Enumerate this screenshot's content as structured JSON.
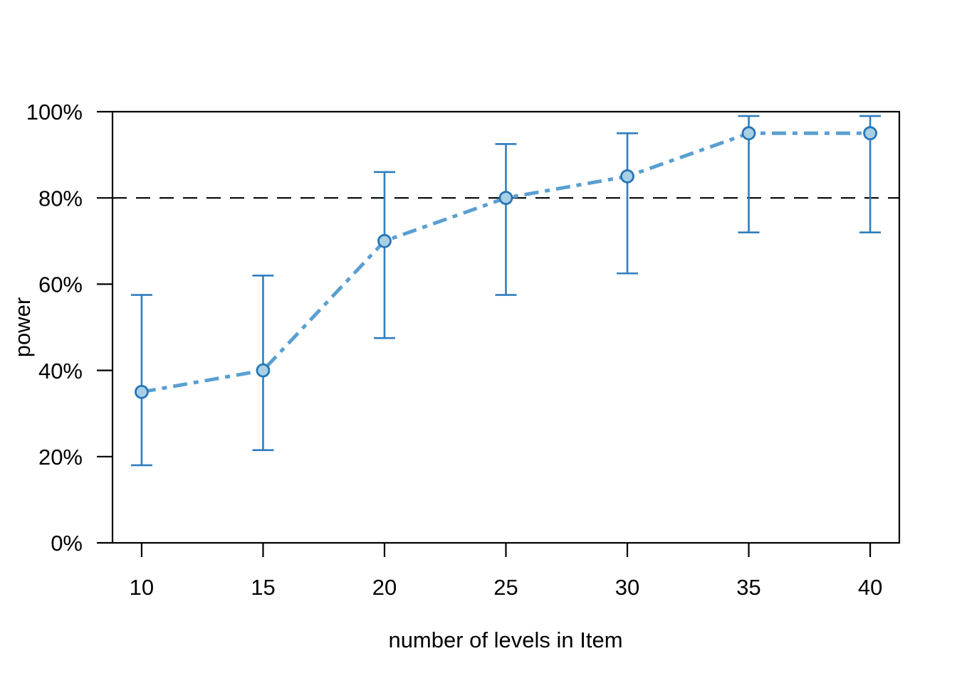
{
  "chart_data": {
    "type": "line",
    "title": "",
    "xlabel": "number of levels in Item",
    "ylabel": "power",
    "x": [
      10,
      15,
      20,
      25,
      30,
      35,
      40
    ],
    "x_ticks": [
      10,
      15,
      20,
      25,
      30,
      35,
      40
    ],
    "x_tick_labels": [
      "10",
      "15",
      "20",
      "25",
      "30",
      "35",
      "40"
    ],
    "y_ticks": [
      0,
      20,
      40,
      60,
      80,
      100
    ],
    "y_tick_labels": [
      "0%",
      "20%",
      "40%",
      "60%",
      "80%",
      "100%"
    ],
    "xlim": [
      8.8,
      41.2
    ],
    "ylim": [
      0,
      100
    ],
    "grid": false,
    "legend": "none",
    "series": [
      {
        "name": "power",
        "marker": "circle",
        "line_style": "dash-dot",
        "values": [
          35,
          40,
          70,
          80,
          85,
          95,
          95
        ],
        "ci_lower": [
          18,
          21.5,
          47.5,
          57.5,
          62.5,
          72,
          72
        ],
        "ci_upper": [
          57.5,
          62,
          86,
          92.5,
          95,
          99,
          99
        ]
      }
    ],
    "reference_line": {
      "y": 80,
      "style": "dashed"
    },
    "style": {
      "line_color": "#5b9fd0",
      "error_bar_color": "#2f7ebe",
      "marker_fill": "#a9cfe6",
      "marker_stroke": "#2575b5",
      "axis_color": "#000000",
      "reference_color": "#000000",
      "background": "#ffffff"
    }
  }
}
